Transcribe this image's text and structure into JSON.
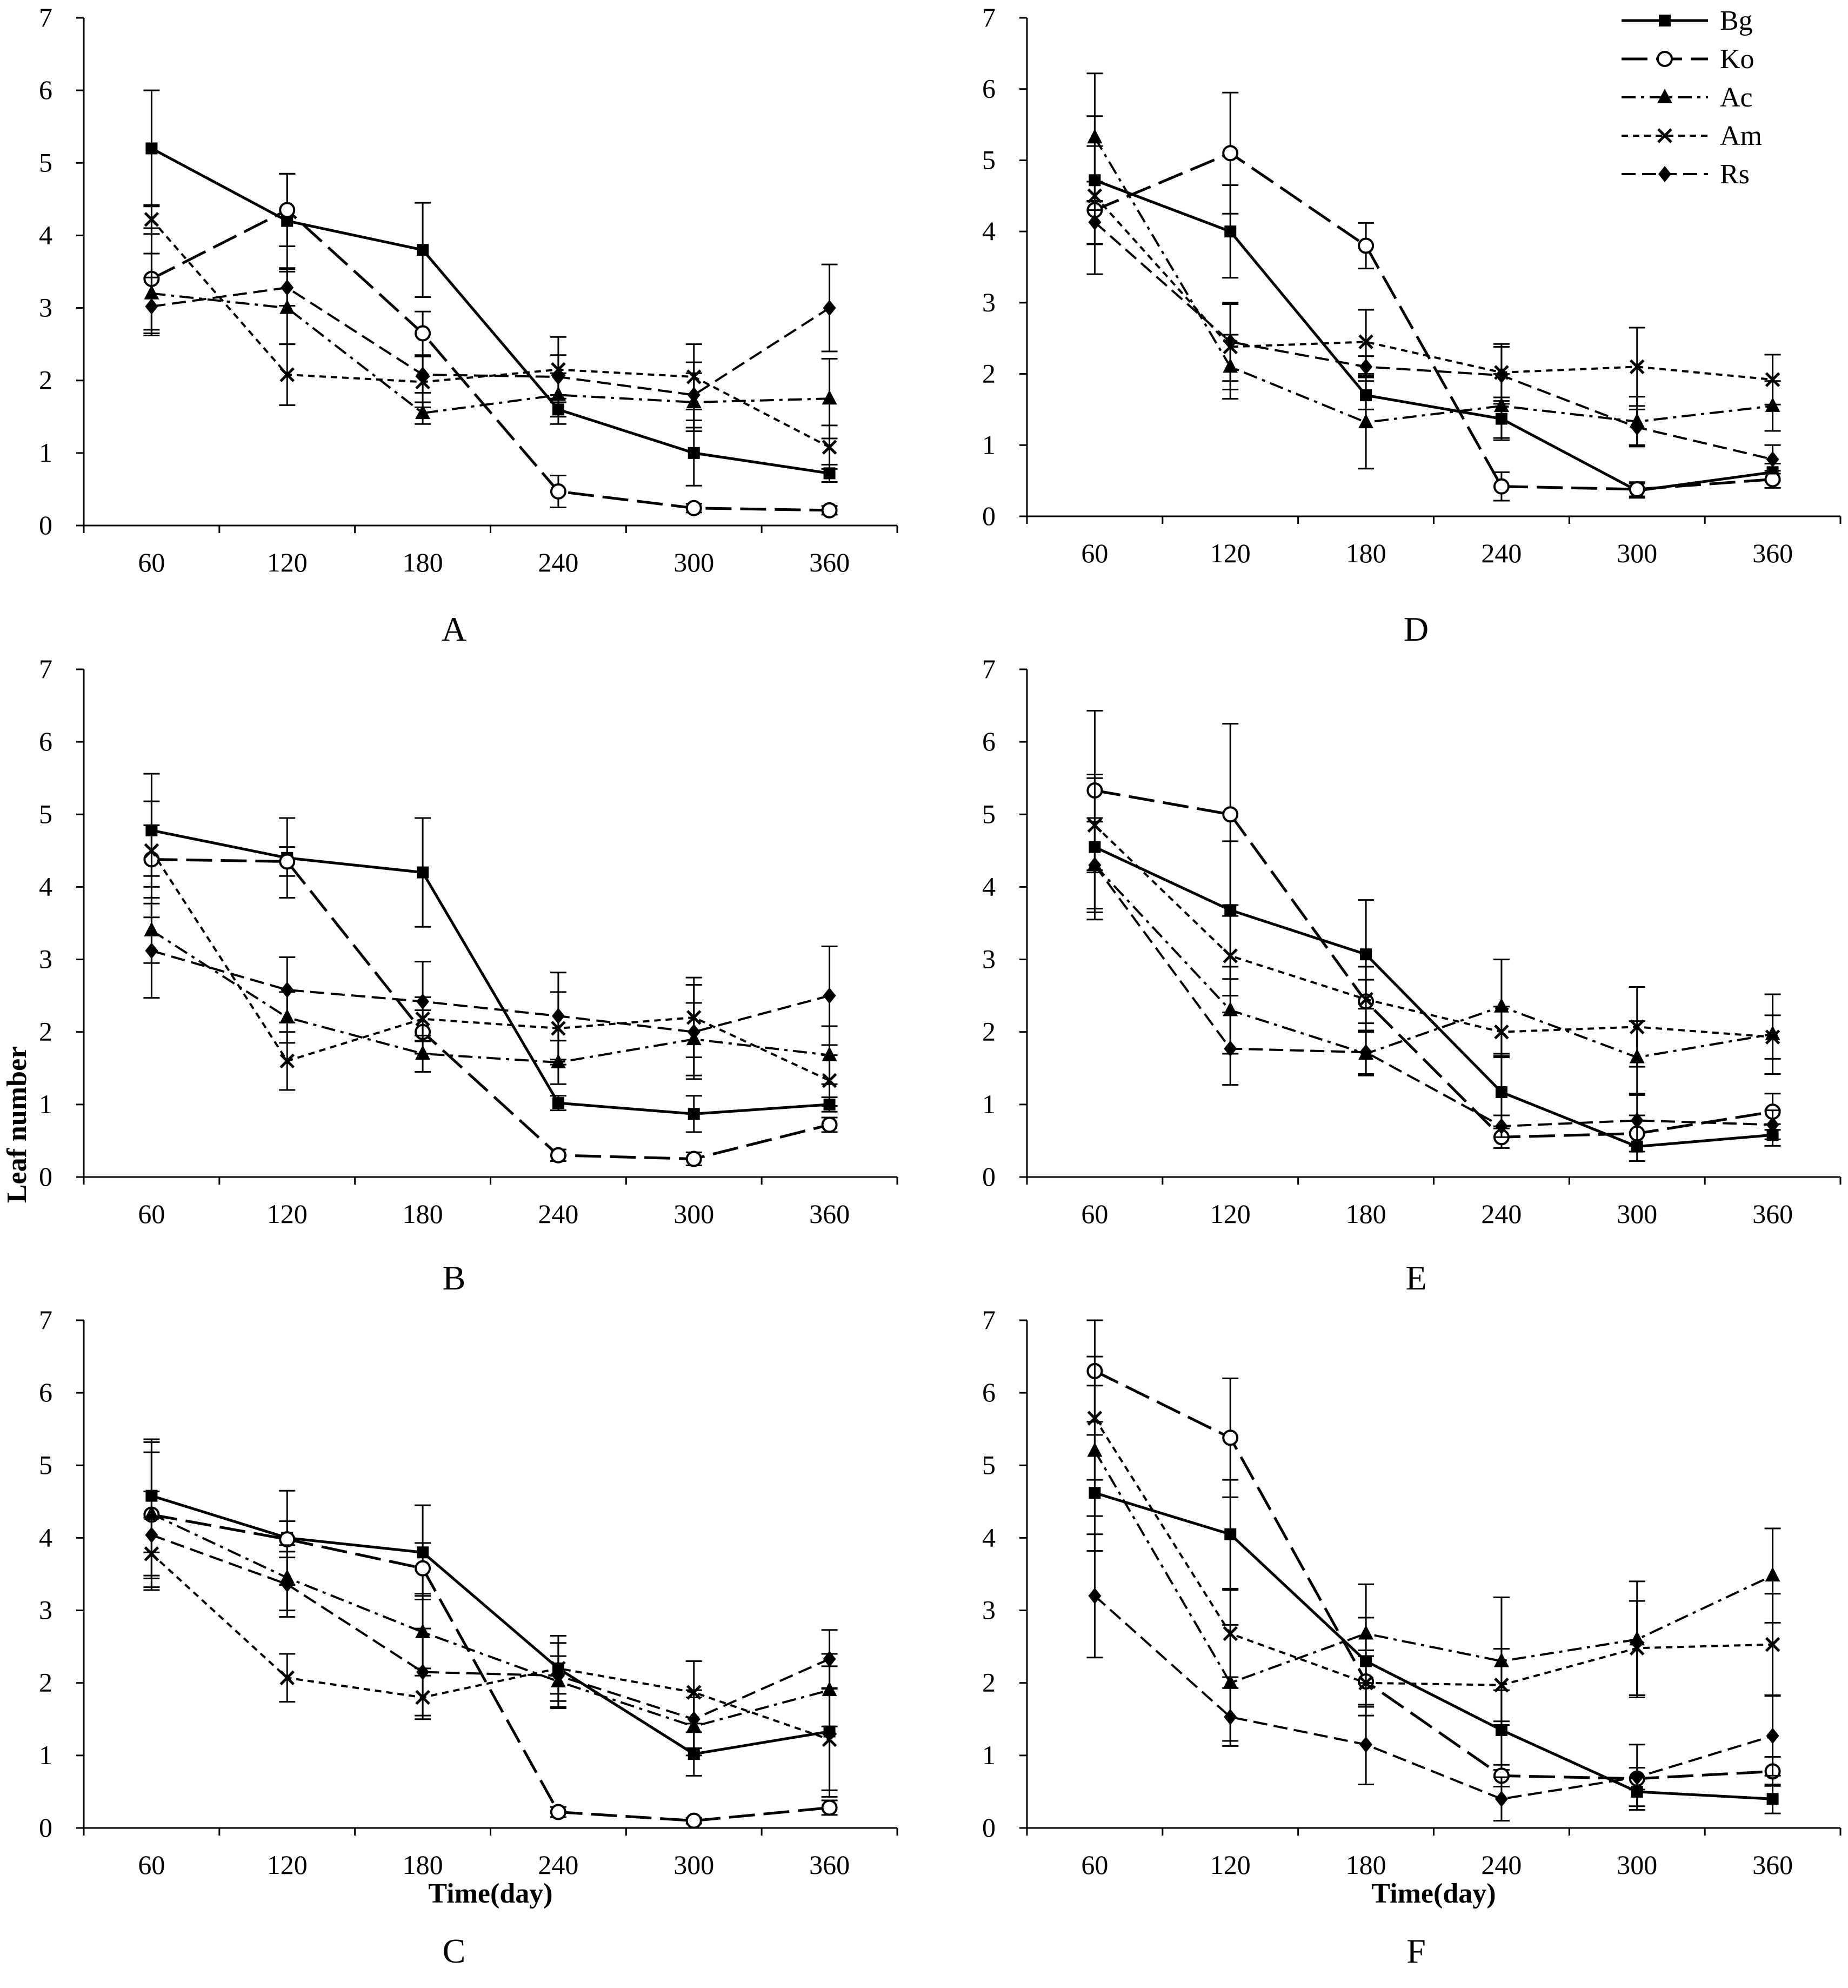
{
  "figure": {
    "y_axis_label": "Leaf number",
    "x_axis_label": "Time(day)"
  },
  "legend": [
    {
      "name": "Bg",
      "marker": "square-marker",
      "dash": "solid"
    },
    {
      "name": "Ko",
      "marker": "open-circle-marker",
      "dash": "long-dash"
    },
    {
      "name": "Ac",
      "marker": "triangle-marker",
      "dash": "dash-dot"
    },
    {
      "name": "Am",
      "marker": "x-marker",
      "dash": "short-dash"
    },
    {
      "name": "Rs",
      "marker": "diamond-marker",
      "dash": "dash"
    }
  ],
  "chart_data": [
    {
      "type": "line",
      "panel": "A",
      "title": "A",
      "x": [
        60,
        120,
        180,
        240,
        300,
        360
      ],
      "xticks": [
        "60",
        "120",
        "180",
        "240",
        "300",
        "360"
      ],
      "yticks": [
        "0",
        "1",
        "2",
        "3",
        "4",
        "5",
        "6",
        "7"
      ],
      "ylim": [
        0,
        7
      ],
      "xlabel": "",
      "ylabel": "",
      "series": [
        {
          "name": "Bg",
          "values": [
            5.2,
            4.2,
            3.8,
            1.6,
            1.0,
            0.72
          ],
          "err": [
            0.8,
            0.65,
            0.65,
            0.2,
            0.45,
            0.12
          ]
        },
        {
          "name": "Ko",
          "values": [
            3.4,
            4.35,
            2.65,
            0.47,
            0.24,
            0.21
          ],
          "err": [
            0.7,
            0.5,
            0.3,
            0.22,
            0.06,
            0.06
          ]
        },
        {
          "name": "Ac",
          "values": [
            3.2,
            3.0,
            1.55,
            1.8,
            1.7,
            1.75
          ],
          "err": [
            0.55,
            0.5,
            0.15,
            0.3,
            0.4,
            0.55
          ]
        },
        {
          "name": "Am",
          "values": [
            4.22,
            2.08,
            1.98,
            2.15,
            2.05,
            1.08
          ],
          "err": [
            0.2,
            0.42,
            0.35,
            0.45,
            0.45,
            0.3
          ]
        },
        {
          "name": "Rs",
          "values": [
            3.02,
            3.28,
            2.08,
            2.05,
            1.8,
            3.0
          ],
          "err": [
            0.4,
            0.25,
            0.25,
            0.3,
            0.45,
            0.6
          ]
        }
      ]
    },
    {
      "type": "line",
      "panel": "B",
      "title": "B",
      "x": [
        60,
        120,
        180,
        240,
        300,
        360
      ],
      "xticks": [
        "60",
        "120",
        "180",
        "240",
        "300",
        "360"
      ],
      "yticks": [
        "0",
        "1",
        "2",
        "3",
        "4",
        "5",
        "6",
        "7"
      ],
      "ylim": [
        0,
        7
      ],
      "xlabel": "",
      "ylabel": "Leaf number",
      "series": [
        {
          "name": "Bg",
          "values": [
            4.78,
            4.4,
            4.2,
            1.02,
            0.87,
            1.0
          ],
          "err": [
            0.78,
            0.55,
            0.75,
            0.1,
            0.25,
            0.1
          ]
        },
        {
          "name": "Ko",
          "values": [
            4.38,
            4.35,
            2.0,
            0.3,
            0.25,
            0.72
          ],
          "err": [
            0.8,
            0.2,
            0.3,
            0.08,
            0.09,
            0.1
          ]
        },
        {
          "name": "Ac",
          "values": [
            3.4,
            2.2,
            1.7,
            1.58,
            1.9,
            1.68
          ],
          "err": [
            0.45,
            0.35,
            0.25,
            0.3,
            0.5,
            0.4
          ]
        },
        {
          "name": "Am",
          "values": [
            4.5,
            1.6,
            2.18,
            2.05,
            2.2,
            1.33
          ],
          "err": [
            0.35,
            0.4,
            0.3,
            0.5,
            0.55,
            0.35
          ]
        },
        {
          "name": "Rs",
          "values": [
            3.12,
            2.58,
            2.42,
            2.22,
            2.0,
            2.5
          ],
          "err": [
            0.65,
            0.45,
            0.55,
            0.6,
            0.65,
            0.68
          ]
        }
      ]
    },
    {
      "type": "line",
      "panel": "C",
      "title": "C",
      "x": [
        60,
        120,
        180,
        240,
        300,
        360
      ],
      "xticks": [
        "60",
        "120",
        "180",
        "240",
        "300",
        "360"
      ],
      "yticks": [
        "0",
        "1",
        "2",
        "3",
        "4",
        "5",
        "6",
        "7"
      ],
      "ylim": [
        0,
        7
      ],
      "xlabel": "Time(day)",
      "ylabel": "",
      "series": [
        {
          "name": "Bg",
          "values": [
            4.58,
            4.0,
            3.8,
            2.2,
            1.02,
            1.33
          ],
          "err": [
            0.78,
            0.65,
            0.65,
            0.45,
            0.3,
            0.9
          ]
        },
        {
          "name": "Ko",
          "values": [
            4.32,
            3.98,
            3.58,
            0.22,
            0.1,
            0.28
          ],
          "err": [
            1.0,
            0.25,
            0.35,
            0.07,
            0.04,
            0.1
          ]
        },
        {
          "name": "Ac",
          "values": [
            4.33,
            3.45,
            2.7,
            2.02,
            1.4,
            1.9
          ],
          "err": [
            0.85,
            0.45,
            0.5,
            0.35,
            0.4,
            0.5
          ]
        },
        {
          "name": "Am",
          "values": [
            3.78,
            2.07,
            1.8,
            2.2,
            1.87,
            1.22
          ],
          "err": [
            0.5,
            0.33,
            0.3,
            0.35,
            0.43,
            0.7
          ]
        },
        {
          "name": "Rs",
          "values": [
            4.04,
            3.36,
            2.15,
            2.1,
            1.5,
            2.33
          ],
          "err": [
            0.6,
            0.45,
            0.6,
            0.45,
            0.4,
            0.4
          ]
        }
      ]
    },
    {
      "type": "line",
      "panel": "D",
      "title": "D",
      "x": [
        60,
        120,
        180,
        240,
        300,
        360
      ],
      "xticks": [
        "60",
        "120",
        "180",
        "240",
        "300",
        "360"
      ],
      "yticks": [
        "0",
        "1",
        "2",
        "3",
        "4",
        "5",
        "6",
        "7"
      ],
      "ylim": [
        0,
        7
      ],
      "xlabel": "",
      "ylabel": "",
      "series": [
        {
          "name": "Bg",
          "values": [
            4.72,
            4.0,
            1.7,
            1.37,
            0.36,
            0.62
          ],
          "err": [
            0.9,
            0.65,
            0.2,
            0.3,
            0.1,
            0.12
          ]
        },
        {
          "name": "Ko",
          "values": [
            4.3,
            5.1,
            3.8,
            0.42,
            0.38,
            0.52
          ],
          "err": [
            0.9,
            0.85,
            0.32,
            0.2,
            0.1,
            0.12
          ]
        },
        {
          "name": "Ac",
          "values": [
            5.32,
            2.1,
            1.32,
            1.55,
            1.33,
            1.55
          ],
          "err": [
            0.9,
            0.45,
            0.65,
            0.45,
            0.35,
            0.35
          ]
        },
        {
          "name": "Am",
          "values": [
            4.5,
            2.38,
            2.45,
            2.02,
            2.1,
            1.92
          ],
          "err": [
            0.2,
            0.6,
            0.45,
            0.4,
            0.55,
            0.35
          ]
        },
        {
          "name": "Rs",
          "values": [
            4.13,
            2.45,
            2.1,
            1.98,
            1.25,
            0.8
          ],
          "err": [
            0.3,
            0.55,
            0.15,
            0.4,
            0.25,
            0.2
          ]
        }
      ]
    },
    {
      "type": "line",
      "panel": "E",
      "title": "E",
      "x": [
        60,
        120,
        180,
        240,
        300,
        360
      ],
      "xticks": [
        "60",
        "120",
        "180",
        "240",
        "300",
        "360"
      ],
      "yticks": [
        "0",
        "1",
        "2",
        "3",
        "4",
        "5",
        "6",
        "7"
      ],
      "ylim": [
        0,
        7
      ],
      "xlabel": "",
      "ylabel": "",
      "series": [
        {
          "name": "Bg",
          "values": [
            4.55,
            3.68,
            3.07,
            1.17,
            0.42,
            0.58
          ],
          "err": [
            1.0,
            0.95,
            0.75,
            0.5,
            0.2,
            0.15
          ]
        },
        {
          "name": "Ko",
          "values": [
            5.33,
            5.0,
            2.42,
            0.55,
            0.6,
            0.9
          ],
          "err": [
            1.1,
            1.25,
            0.3,
            0.15,
            0.25,
            0.25
          ]
        },
        {
          "name": "Ac",
          "values": [
            4.3,
            2.3,
            1.7,
            2.35,
            1.65,
            1.97
          ],
          "err": [
            0.6,
            0.6,
            0.3,
            0.65,
            0.5,
            0.55
          ]
        },
        {
          "name": "Am",
          "values": [
            4.85,
            3.05,
            2.45,
            2.0,
            2.07,
            1.93
          ],
          "err": [
            0.65,
            0.55,
            0.45,
            0.35,
            0.55,
            0.3
          ]
        },
        {
          "name": "Rs",
          "values": [
            4.3,
            1.77,
            1.72,
            0.7,
            0.78,
            0.72
          ],
          "err": [
            0.65,
            0.5,
            0.3,
            0.15,
            0.35,
            0.2
          ]
        }
      ]
    },
    {
      "type": "line",
      "panel": "F",
      "title": "F",
      "x": [
        60,
        120,
        180,
        240,
        300,
        360
      ],
      "xticks": [
        "60",
        "120",
        "180",
        "240",
        "300",
        "360"
      ],
      "yticks": [
        "0",
        "1",
        "2",
        "3",
        "4",
        "5",
        "6",
        "7"
      ],
      "ylim": [
        0,
        7
      ],
      "xlabel": "Time(day)",
      "ylabel": "",
      "series": [
        {
          "name": "Bg",
          "values": [
            4.62,
            4.05,
            2.3,
            1.35,
            0.5,
            0.4
          ],
          "err": [
            0.8,
            0.75,
            0.6,
            0.55,
            0.2,
            0.2
          ]
        },
        {
          "name": "Ko",
          "values": [
            6.3,
            5.38,
            2.02,
            0.72,
            0.68,
            0.78
          ],
          "err": [
            0.7,
            0.82,
            0.35,
            0.15,
            0.15,
            0.2
          ]
        },
        {
          "name": "Ac",
          "values": [
            5.2,
            2.0,
            2.68,
            2.3,
            2.6,
            3.48
          ],
          "err": [
            0.9,
            0.8,
            0.68,
            0.88,
            0.8,
            0.65
          ]
        },
        {
          "name": "Am",
          "values": [
            5.65,
            2.68,
            2.0,
            1.97,
            2.48,
            2.53
          ],
          "err": [
            0.85,
            0.6,
            0.45,
            0.5,
            0.65,
            0.7
          ]
        },
        {
          "name": "Rs",
          "values": [
            3.2,
            1.53,
            1.15,
            0.4,
            0.7,
            1.27
          ],
          "err": [
            0.85,
            0.4,
            0.55,
            0.3,
            0.45,
            0.55
          ]
        }
      ]
    }
  ]
}
